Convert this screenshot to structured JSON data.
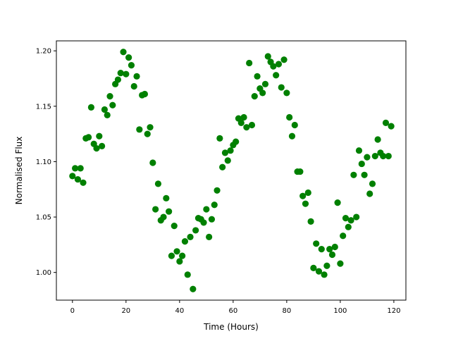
{
  "chart_data": {
    "type": "scatter",
    "title": "",
    "xlabel": "Time (Hours)",
    "ylabel": "Normalised Flux",
    "xlim": [
      -6,
      124.5
    ],
    "ylim": [
      0.975,
      1.209
    ],
    "xticks": [
      0,
      20,
      40,
      60,
      80,
      100,
      120
    ],
    "xtick_labels": [
      "0",
      "20",
      "40",
      "60",
      "80",
      "100",
      "120"
    ],
    "yticks": [
      1.0,
      1.05,
      1.1,
      1.15,
      1.2
    ],
    "ytick_labels": [
      "1.00",
      "1.05",
      "1.10",
      "1.15",
      "1.20"
    ],
    "grid": false,
    "marker_color": "#008000",
    "x": [
      0,
      1,
      2,
      3,
      4,
      5,
      6,
      7,
      8,
      9,
      10,
      11,
      12,
      13,
      14,
      15,
      16,
      17,
      18,
      19,
      20,
      21,
      22,
      23,
      24,
      25,
      26,
      27,
      28,
      29,
      30,
      31,
      32,
      33,
      34,
      35,
      36,
      37,
      38,
      39,
      40,
      41,
      42,
      43,
      44,
      45,
      46,
      47,
      48,
      49,
      50,
      51,
      52,
      53,
      54,
      55,
      56,
      57,
      58,
      59,
      60,
      61,
      62,
      63,
      64,
      65,
      66,
      67,
      68,
      69,
      70,
      71,
      72,
      73,
      74,
      75,
      76,
      77,
      78,
      79,
      80,
      81,
      82,
      83,
      84,
      85,
      86,
      87,
      88,
      89,
      90,
      91,
      92,
      93,
      94,
      95,
      96,
      97,
      98,
      99,
      100,
      101,
      102,
      103,
      104,
      105,
      106,
      107,
      108,
      109,
      110,
      111,
      112,
      113,
      114,
      115,
      116,
      117,
      118,
      119
    ],
    "y": [
      1.087,
      1.094,
      1.084,
      1.094,
      1.081,
      1.121,
      1.122,
      1.149,
      1.116,
      1.112,
      1.123,
      1.114,
      1.147,
      1.142,
      1.159,
      1.151,
      1.17,
      1.174,
      1.18,
      1.199,
      1.179,
      1.194,
      1.187,
      1.168,
      1.177,
      1.129,
      1.16,
      1.161,
      1.125,
      1.131,
      1.099,
      1.057,
      1.08,
      1.047,
      1.05,
      1.067,
      1.055,
      1.015,
      1.042,
      1.019,
      1.01,
      1.015,
      1.028,
      0.998,
      1.032,
      0.985,
      1.038,
      1.049,
      1.048,
      1.045,
      1.057,
      1.032,
      1.048,
      1.061,
      1.074,
      1.121,
      1.095,
      1.108,
      1.101,
      1.11,
      1.115,
      1.118,
      1.139,
      1.135,
      1.14,
      1.131,
      1.189,
      1.133,
      1.159,
      1.177,
      1.166,
      1.162,
      1.17,
      1.195,
      1.19,
      1.186,
      1.178,
      1.188,
      1.167,
      1.192,
      1.162,
      1.14,
      1.123,
      1.133,
      1.091,
      1.091,
      1.069,
      1.062,
      1.072,
      1.046,
      1.004,
      1.026,
      1.001,
      1.021,
      0.998,
      1.006,
      1.021,
      1.016,
      1.023,
      1.063,
      1.008,
      1.033,
      1.049,
      1.041,
      1.047,
      1.088,
      1.05,
      1.11,
      1.098,
      1.088,
      1.104,
      1.071,
      1.08,
      1.105,
      1.12,
      1.108,
      1.105,
      1.135,
      1.105,
      1.132
    ]
  }
}
